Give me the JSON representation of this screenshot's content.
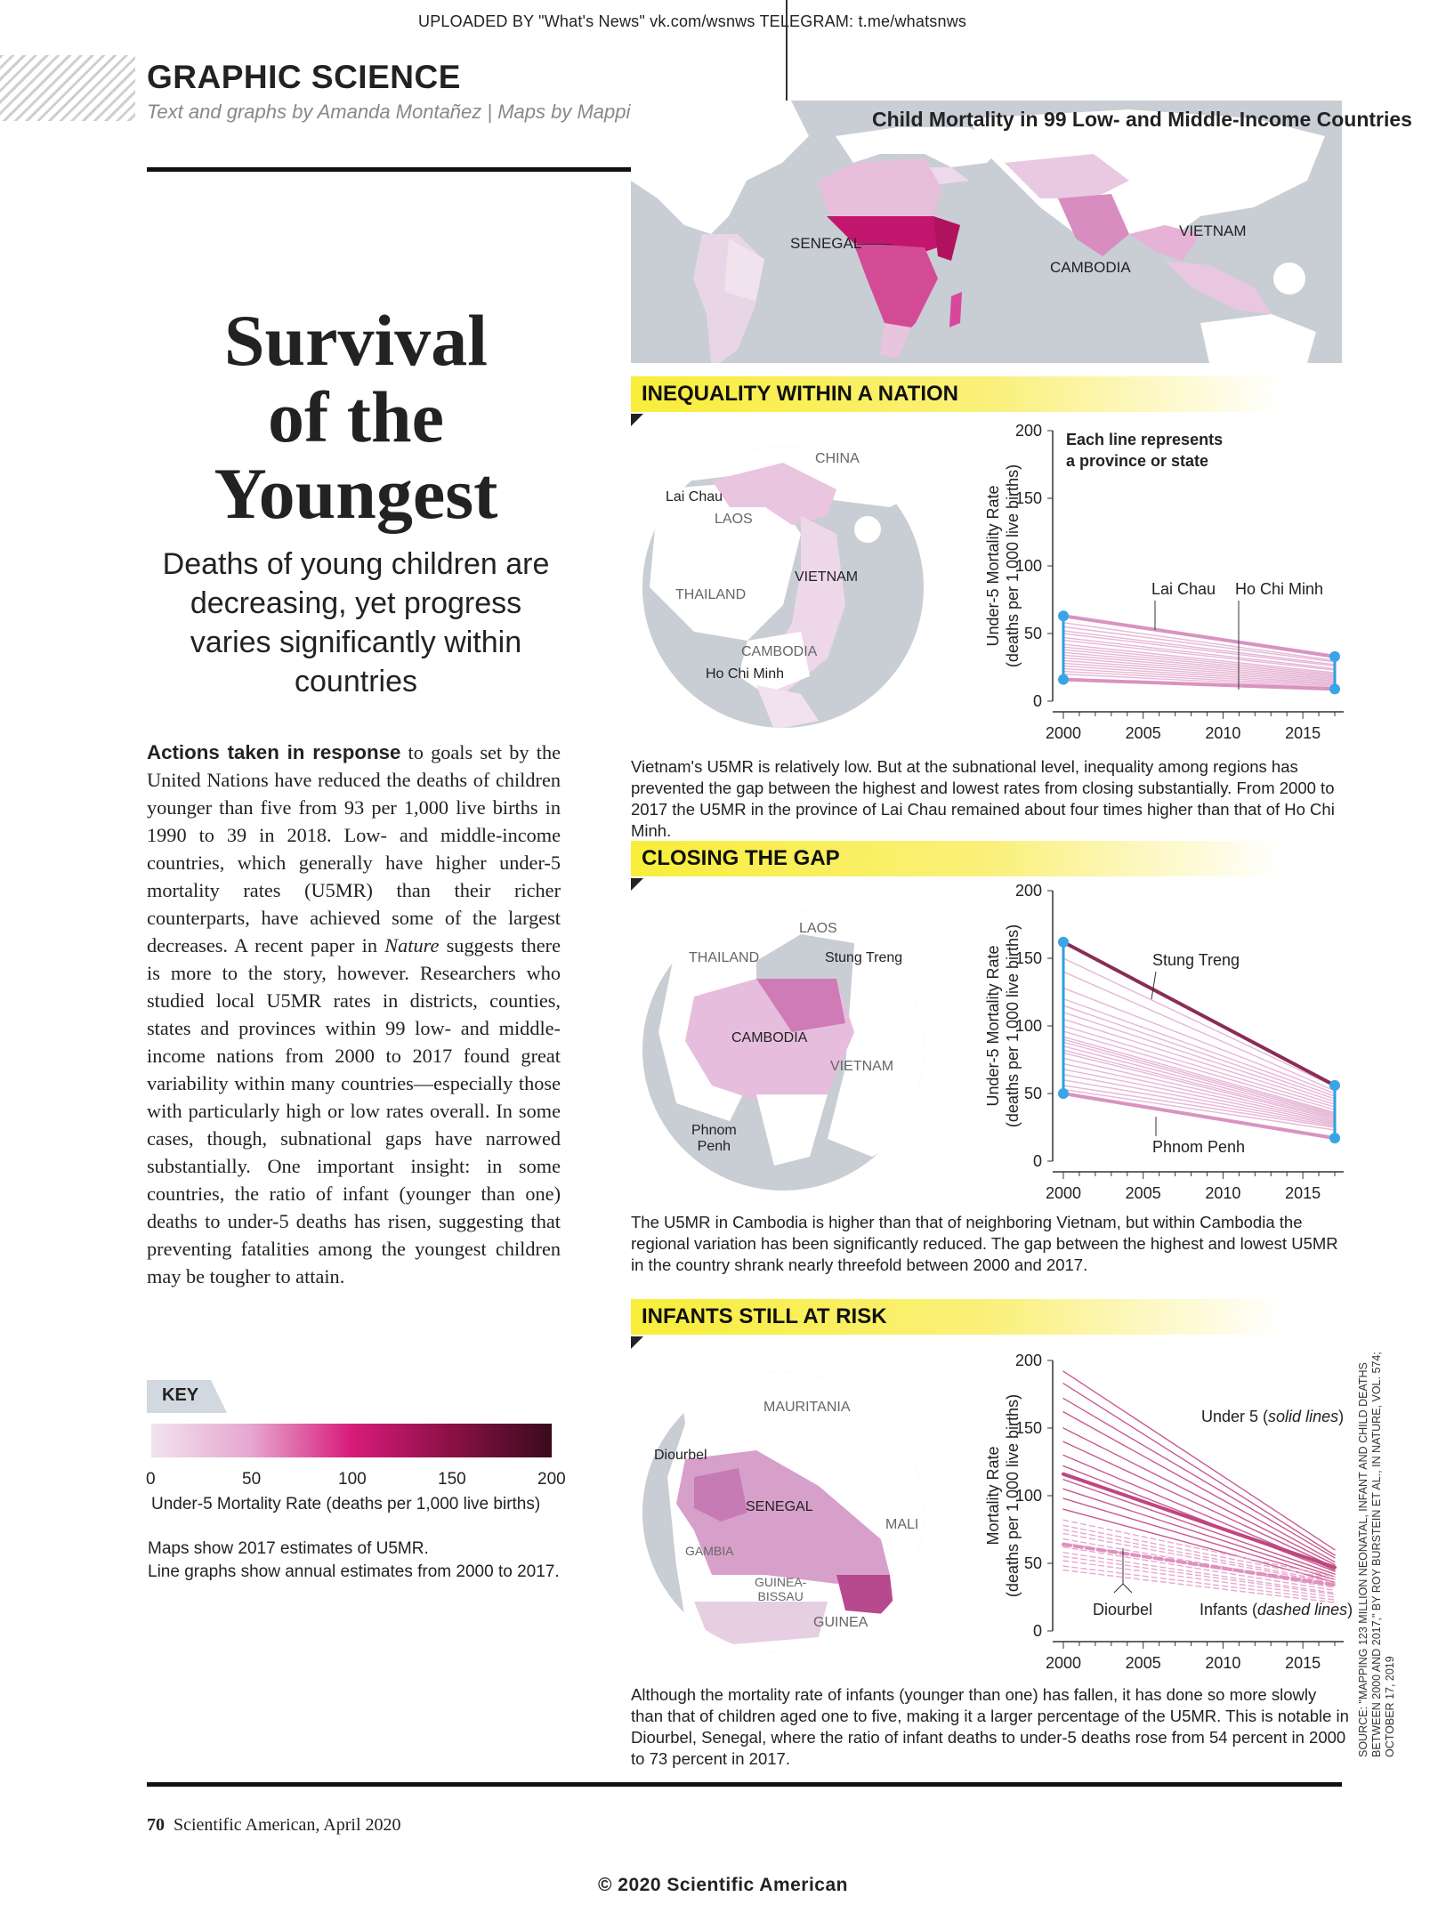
{
  "header": {
    "upload_note": "UPLOADED BY \"What's News\" vk.com/wsnws   TELEGRAM: t.me/whatsnws",
    "department": "GRAPHIC SCIENCE",
    "credits": "Text and graphs by Amanda Montañez  |  Maps by Mapping Specialists"
  },
  "article": {
    "title_line1": "Survival",
    "title_line2": "of the",
    "title_line3": "Youngest",
    "subtitle": "Deaths of young children are decreasing, yet progress varies significantly within countries",
    "lead": "Actions taken in response",
    "body_part1": " to goals set by the United Nations have reduced the deaths of children younger than five from 93 per 1,000 live births in 1990 to 39 in 2018. Low- and middle-income countries, which generally have higher under-5 mortality rates (U5MR) than their richer counterparts, have achieved some of the largest decreases. A recent paper in ",
    "body_italic": "Nature",
    "body_part2": " suggests there is more to the story, however. Researchers who studied local U5MR rates in districts, counties, states and provinces within 99 low- and middle-income nations from 2000 to 2017 found great variability within many countries—especially those with particularly high or low rates overall. In some cases, though, subnational gaps have narrowed substantially. One important insight: in some countries, the ratio of infant (younger than one) deaths to under-5 deaths has risen, suggesting that preventing fatalities among the youngest children may be tougher to attain."
  },
  "key": {
    "label": "KEY",
    "ticks": [
      "0",
      "50",
      "100",
      "150",
      "200"
    ],
    "caption": "Under-5 Mortality Rate (deaths per 1,000 live births)",
    "note1": "Maps show 2017 estimates of U5MR.",
    "note2": "Line graphs show annual estimates from 2000 to 2017.",
    "colors": [
      "#f1e3ef",
      "#e6a6cf",
      "#d81b7a",
      "#8a1045",
      "#3a0b1c"
    ]
  },
  "world_map": {
    "title": "Child Mortality in 99 Low- and Middle-Income Countries",
    "labels": {
      "senegal": "SENEGAL",
      "cambodia": "CAMBODIA",
      "vietnam": "VIETNAM"
    }
  },
  "sections": {
    "vietnam": {
      "heading": "INEQUALITY WITHIN A NATION",
      "map_labels": {
        "china": "CHINA",
        "lai_chau": "Lai Chau",
        "laos": "LAOS",
        "thailand": "THAILAND",
        "vietnam": "VIETNAM",
        "cambodia": "CAMBODIA",
        "ho_chi_minh": "Ho Chi Minh"
      },
      "chart_note": "Each line represents a province or state",
      "chart_note1": "Each line represents",
      "chart_note2": "a province or state",
      "ylabel1": "Under-5 Mortality Rate",
      "ylabel2": "(deaths per 1,000 live births)",
      "annotations": {
        "lai_chau": "Lai Chau",
        "ho_chi_minh": "Ho Chi Minh"
      },
      "caption": "Vietnam's U5MR is relatively low. But at the subnational level, inequality among regions has prevented the gap between the highest and lowest rates from closing substantially. From 2000 to 2017 the U5MR in the province of Lai Chau remained about four times higher than that of Ho Chi Minh."
    },
    "cambodia": {
      "heading": "CLOSING THE GAP",
      "map_labels": {
        "thailand": "THAILAND",
        "laos": "LAOS",
        "stung_treng": "Stung Treng",
        "cambodia": "CAMBODIA",
        "vietnam": "VIETNAM",
        "phnom_penh_1": "Phnom",
        "phnom_penh_2": "Penh"
      },
      "ylabel1": "Under-5 Mortality Rate",
      "ylabel2": "(deaths per 1,000 live births)",
      "annotations": {
        "stung_treng": "Stung Treng",
        "phnom_penh": "Phnom Penh"
      },
      "caption": "The U5MR in Cambodia is higher than that of neighboring Vietnam, but within Cambodia the regional variation has been significantly reduced. The gap between the highest and lowest U5MR in the country shrank nearly threefold between 2000 and 2017."
    },
    "senegal": {
      "heading": "INFANTS STILL AT RISK",
      "map_labels": {
        "mauritania": "MAURITANIA",
        "diourbel": "Diourbel",
        "senegal": "SENEGAL",
        "mali": "MALI",
        "gambia": "GAMBIA",
        "guinea_bissau_1": "GUINEA-",
        "guinea_bissau_2": "BISSAU",
        "guinea": "GUINEA"
      },
      "ylabel1": "Mortality Rate",
      "ylabel2": "(deaths per 1,000 live births)",
      "annotations": {
        "under5_prefix": "Under 5 (",
        "under5_italic": "solid lines",
        "under5_suffix": ")",
        "diourbel": "Diourbel",
        "infants_prefix": "Infants (",
        "infants_italic": "dashed lines",
        "infants_suffix": ")"
      },
      "caption": "Although the mortality rate of infants (younger than one) has fallen, it has done so more slowly than that of children aged one to five, making it a larger percentage of the U5MR. This is notable in Diourbel, Senegal, where the ratio of infant deaths to under-5 deaths rose from 54 percent in 2000 to 73 percent in 2017."
    }
  },
  "chart_data": [
    {
      "type": "line",
      "title": "INEQUALITY WITHIN A NATION",
      "xlabel": "",
      "ylabel": "Under-5 Mortality Rate (deaths per 1,000 live births)",
      "xlim": [
        2000,
        2017
      ],
      "ylim": [
        0,
        200
      ],
      "xticks": [
        "2000",
        "2005",
        "2010",
        "2015"
      ],
      "yticks": [
        "0",
        "50",
        "100",
        "150",
        "200"
      ],
      "x": [
        2000,
        2017
      ],
      "series": [
        {
          "name": "Lai Chau",
          "values": [
            63,
            33
          ]
        },
        {
          "name": "Ho Chi Minh",
          "values": [
            16,
            9
          ]
        }
      ],
      "background_series": [
        [
          58,
          30
        ],
        [
          55,
          29
        ],
        [
          52,
          27
        ],
        [
          50,
          26
        ],
        [
          47,
          24
        ],
        [
          45,
          23
        ],
        [
          42,
          21
        ],
        [
          40,
          20
        ],
        [
          38,
          19
        ],
        [
          36,
          18
        ],
        [
          34,
          17
        ],
        [
          32,
          16
        ],
        [
          30,
          15
        ],
        [
          28,
          14
        ],
        [
          26,
          13
        ],
        [
          24,
          12
        ],
        [
          22,
          11
        ],
        [
          20,
          10
        ]
      ]
    },
    {
      "type": "line",
      "title": "CLOSING THE GAP",
      "xlabel": "",
      "ylabel": "Under-5 Mortality Rate (deaths per 1,000 live births)",
      "xlim": [
        2000,
        2017
      ],
      "ylim": [
        0,
        200
      ],
      "xticks": [
        "2000",
        "2005",
        "2010",
        "2015"
      ],
      "yticks": [
        "0",
        "50",
        "100",
        "150",
        "200"
      ],
      "x": [
        2000,
        2017
      ],
      "series": [
        {
          "name": "Stung Treng",
          "values": [
            162,
            56
          ]
        },
        {
          "name": "Phnom Penh",
          "values": [
            50,
            17
          ]
        }
      ],
      "background_series": [
        [
          150,
          55
        ],
        [
          140,
          52
        ],
        [
          128,
          50
        ],
        [
          120,
          48
        ],
        [
          115,
          46
        ],
        [
          110,
          44
        ],
        [
          105,
          42
        ],
        [
          100,
          40
        ],
        [
          96,
          38
        ],
        [
          92,
          36
        ],
        [
          90,
          35
        ],
        [
          88,
          34
        ],
        [
          85,
          33
        ],
        [
          82,
          32
        ],
        [
          80,
          31
        ],
        [
          76,
          30
        ],
        [
          72,
          29
        ],
        [
          68,
          28
        ],
        [
          64,
          27
        ],
        [
          60,
          26
        ],
        [
          56,
          25
        ],
        [
          53,
          23
        ]
      ]
    },
    {
      "type": "line",
      "title": "INFANTS STILL AT RISK",
      "xlabel": "",
      "ylabel": "Mortality Rate (deaths per 1,000 live births)",
      "xlim": [
        2000,
        2017
      ],
      "ylim": [
        0,
        200
      ],
      "xticks": [
        "2000",
        "2005",
        "2010",
        "2015"
      ],
      "yticks": [
        "0",
        "50",
        "100",
        "150",
        "200"
      ],
      "x": [
        2000,
        2017
      ],
      "series": [
        {
          "name": "Under 5",
          "values": [
            116,
            47
          ]
        },
        {
          "name": "Infants",
          "values": [
            64,
            34
          ]
        }
      ],
      "under5_background": [
        [
          192,
          60
        ],
        [
          183,
          56
        ],
        [
          172,
          54
        ],
        [
          162,
          51
        ],
        [
          150,
          49
        ],
        [
          140,
          47
        ],
        [
          130,
          45
        ],
        [
          122,
          44
        ],
        [
          112,
          42
        ],
        [
          105,
          40
        ],
        [
          98,
          38
        ],
        [
          90,
          36
        ]
      ],
      "infants_background": [
        [
          82,
          40
        ],
        [
          78,
          38
        ],
        [
          75,
          36
        ],
        [
          72,
          35
        ],
        [
          68,
          33
        ],
        [
          65,
          32
        ],
        [
          62,
          30
        ],
        [
          58,
          28
        ],
        [
          55,
          27
        ],
        [
          52,
          25
        ],
        [
          48,
          23
        ],
        [
          45,
          21
        ]
      ]
    }
  ],
  "footer": {
    "page_number": "70",
    "publication": "Scientific American, April 2020",
    "copyright": "© 2020 Scientific American",
    "source": "SOURCE: \"MAPPING 123 MILLION NEONATAL, INFANT AND CHILD DEATHS BETWEEN 2000 AND 2017,\" BY ROY BURSTEIN ET AL., IN NATURE, VOL. 574; OCTOBER 17, 2019"
  }
}
